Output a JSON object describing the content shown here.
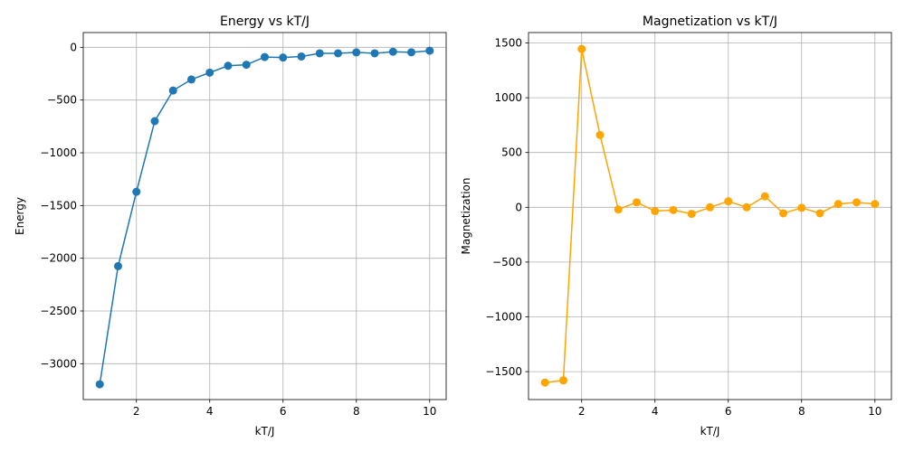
{
  "colors": {
    "energy": "#1f77b4",
    "magnetization": "#ffa500",
    "grid": "#b0b0b0"
  },
  "chart_data": [
    {
      "type": "line",
      "title": "Energy vs kT/J",
      "xlabel": "kT/J",
      "ylabel": "Energy",
      "xlim": [
        0.55,
        10.45
      ],
      "ylim": [
        -3340,
        140
      ],
      "xticks": [
        2,
        4,
        6,
        8,
        10
      ],
      "yticks": [
        -3000,
        -2500,
        -2000,
        -1500,
        -1000,
        -500,
        0
      ],
      "grid": true,
      "marker": "circle",
      "x": [
        1.0,
        1.5,
        2.0,
        2.5,
        3.0,
        3.5,
        4.0,
        4.5,
        5.0,
        5.5,
        6.0,
        6.5,
        7.0,
        7.5,
        8.0,
        8.5,
        9.0,
        9.5,
        10.0
      ],
      "values": [
        -3195,
        -2075,
        -1370,
        -700,
        -410,
        -305,
        -240,
        -175,
        -165,
        -92,
        -97,
        -87,
        -57,
        -57,
        -48,
        -57,
        -42,
        -47,
        -32
      ]
    },
    {
      "type": "line",
      "title": "Magnetization vs kT/J",
      "xlabel": "kT/J",
      "ylabel": "Magnetization",
      "xlim": [
        0.55,
        10.45
      ],
      "ylim": [
        -1755,
        1595
      ],
      "xticks": [
        2,
        4,
        6,
        8,
        10
      ],
      "yticks": [
        -1500,
        -1000,
        -500,
        0,
        500,
        1000,
        1500
      ],
      "grid": true,
      "marker": "circle",
      "x": [
        1.0,
        1.5,
        2.0,
        2.5,
        3.0,
        3.5,
        4.0,
        4.5,
        5.0,
        5.5,
        6.0,
        6.5,
        7.0,
        7.5,
        8.0,
        8.5,
        9.0,
        9.5,
        10.0
      ],
      "values": [
        -1600,
        -1580,
        1445,
        660,
        -20,
        45,
        -35,
        -25,
        -60,
        0,
        55,
        0,
        100,
        -55,
        -5,
        -55,
        30,
        45,
        30
      ]
    }
  ]
}
